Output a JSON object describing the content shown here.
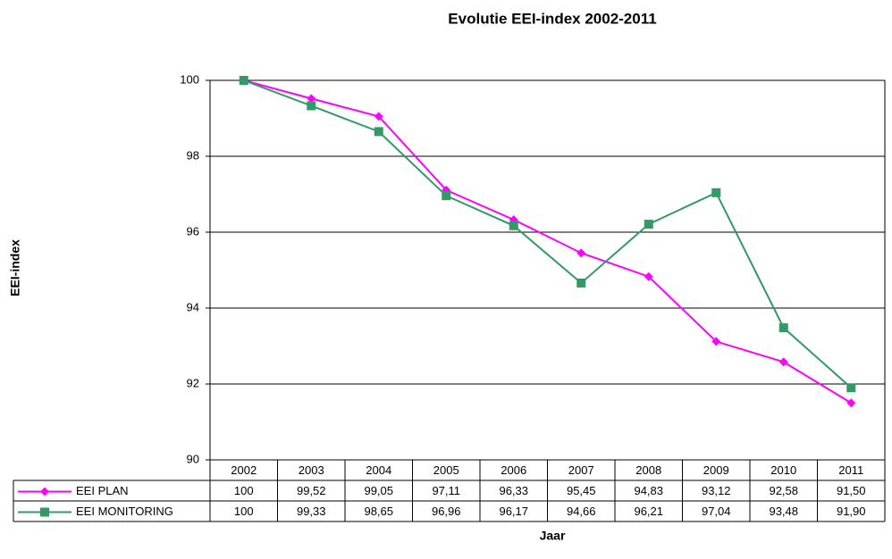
{
  "chart_data": {
    "type": "line",
    "title": "Evolutie EEI-index 2002-2011",
    "x_label": "Jaar",
    "y_label": "EEI-index",
    "categories": [
      "2002",
      "2003",
      "2004",
      "2005",
      "2006",
      "2007",
      "2008",
      "2009",
      "2010",
      "2011"
    ],
    "series": [
      {
        "name": "EEI PLAN",
        "color": "#ff00ff",
        "marker": "diamond",
        "values": [
          100,
          99.52,
          99.05,
          97.11,
          96.33,
          95.45,
          94.83,
          93.12,
          92.58,
          91.5
        ],
        "value_labels": [
          "100",
          "99,52",
          "99,05",
          "97,11",
          "96,33",
          "95,45",
          "94,83",
          "93,12",
          "92,58",
          "91,50"
        ]
      },
      {
        "name": "EEI MONITORING",
        "color": "#339966",
        "marker": "square",
        "values": [
          100,
          99.33,
          98.65,
          96.96,
          96.17,
          94.66,
          96.21,
          97.04,
          93.48,
          91.9
        ],
        "value_labels": [
          "100",
          "99,33",
          "98,65",
          "96,96",
          "96,17",
          "94,66",
          "96,21",
          "97,04",
          "93,48",
          "91,90"
        ]
      }
    ],
    "ylim": [
      90,
      100
    ],
    "yticks": [
      90,
      92,
      94,
      96,
      98,
      100
    ],
    "grid": true
  }
}
